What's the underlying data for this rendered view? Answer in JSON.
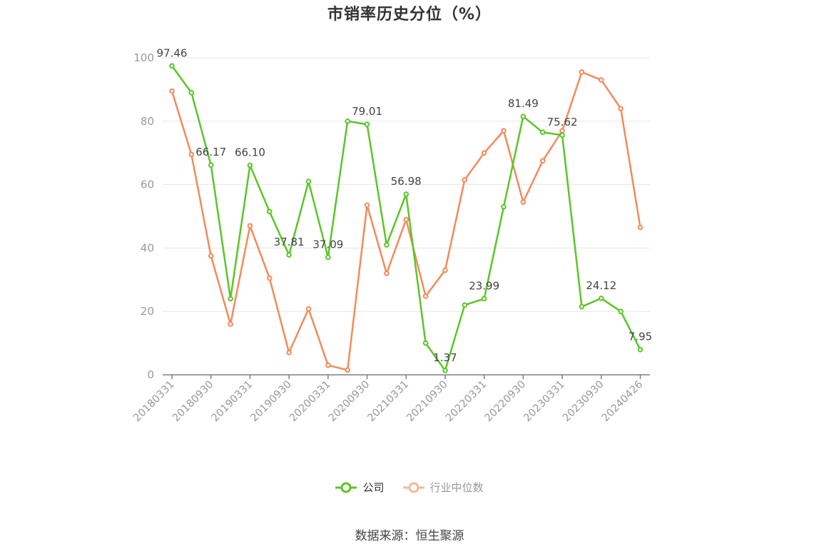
{
  "chart_data": {
    "type": "line",
    "title": "市销率历史分位（%）",
    "x": [
      "20180331",
      "20180630",
      "20180930",
      "20181231",
      "20190331",
      "20190630",
      "20190930",
      "20191231",
      "20200331",
      "20200630",
      "20200930",
      "20201231",
      "20210331",
      "20210630",
      "20210930",
      "20211231",
      "20220331",
      "20220630",
      "20220930",
      "20221231",
      "20230331",
      "20230630",
      "20230930",
      "20231231",
      "20240426"
    ],
    "x_tick_labels": [
      "20180331",
      "20180930",
      "20190331",
      "20190930",
      "20200331",
      "20200930",
      "20210331",
      "20210930",
      "20220331",
      "20220930",
      "20230331",
      "20230930",
      "20240426"
    ],
    "ylim": [
      0,
      100
    ],
    "y_ticks": [
      0,
      20,
      40,
      60,
      80,
      100
    ],
    "grid": true,
    "legend_position": "bottom",
    "series": [
      {
        "name": "公司",
        "color": "#5ac626",
        "values": [
          97.46,
          89,
          66.17,
          24,
          66.1,
          51.5,
          37.81,
          61,
          37.09,
          80,
          79.01,
          41,
          56.98,
          10,
          1.37,
          22,
          23.99,
          53,
          81.49,
          76.5,
          75.62,
          21.5,
          24.12,
          20,
          7.95
        ],
        "labels": [
          "97.46",
          "",
          "66.17",
          "",
          "66.10",
          "",
          "37.81",
          "",
          "37.09",
          "",
          "79.01",
          "",
          "56.98",
          "",
          "1.37",
          "",
          "23.99",
          "",
          "81.49",
          "",
          "75.62",
          "",
          "24.12",
          "",
          "7.95"
        ]
      },
      {
        "name": "行业中位数",
        "color": "#f28b5b",
        "values": [
          89.5,
          69.5,
          37.5,
          16,
          47,
          30.5,
          7,
          20.8,
          3,
          1.5,
          53.5,
          32,
          49,
          24.8,
          33,
          61.5,
          70,
          77,
          54.5,
          67.5,
          77,
          95.5,
          93,
          84,
          46.5
        ]
      }
    ],
    "source": "数据来源：恒生聚源"
  }
}
